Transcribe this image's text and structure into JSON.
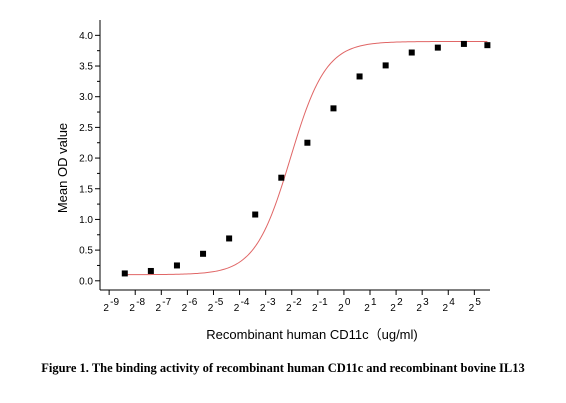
{
  "chart_data": {
    "type": "scatter",
    "xlabel": "Recombinant human  CD11c（ug/ml)",
    "ylabel": "Mean OD value",
    "xscale": "log2",
    "xlim": [
      -9.35,
      5.6
    ],
    "ylim": [
      -0.15,
      4.25
    ],
    "yticks": [
      0.0,
      0.5,
      1.0,
      1.5,
      2.0,
      2.5,
      3.0,
      3.5,
      4.0
    ],
    "ytick_labels": [
      "0.0",
      "0.5",
      "1.0",
      "1.5",
      "2.0",
      "2.5",
      "3.0",
      "3.5",
      "4.0"
    ],
    "xticks": [
      -9,
      -8,
      -7,
      -6,
      -5,
      -4,
      -3,
      -2,
      -1,
      0,
      1,
      2,
      3,
      4,
      5
    ],
    "xtick_labels": [
      {
        "base": "2",
        "exp": "-9"
      },
      {
        "base": "2",
        "exp": "-8"
      },
      {
        "base": "2",
        "exp": "-7"
      },
      {
        "base": "2",
        "exp": "-6"
      },
      {
        "base": "2",
        "exp": "-5"
      },
      {
        "base": "2",
        "exp": "-4"
      },
      {
        "base": "2",
        "exp": "-3"
      },
      {
        "base": "2",
        "exp": "-2"
      },
      {
        "base": "2",
        "exp": "-1"
      },
      {
        "base": "2",
        "exp": "0"
      },
      {
        "base": "2",
        "exp": "1"
      },
      {
        "base": "2",
        "exp": "2"
      },
      {
        "base": "2",
        "exp": "3"
      },
      {
        "base": "2",
        "exp": "4"
      },
      {
        "base": "2",
        "exp": "5"
      }
    ],
    "series": [
      {
        "x": [
          -8.4,
          -7.4,
          -6.4,
          -5.4,
          -4.4,
          -3.4,
          -2.4,
          -1.4,
          -0.4,
          0.6,
          1.6,
          2.6,
          3.6,
          4.6,
          5.5
        ],
        "y": [
          0.12,
          0.16,
          0.25,
          0.44,
          0.69,
          1.08,
          1.68,
          2.25,
          2.81,
          3.33,
          3.51,
          3.72,
          3.8,
          3.86,
          3.84
        ],
        "marker_color": "#000000",
        "marker": "square",
        "fit_color": "#e06666",
        "fit": {
          "bottom": 0.1,
          "top": 3.9,
          "ec50_log2": -2.05,
          "slope_log2": 0.68
        }
      }
    ]
  },
  "caption": {
    "text": "Figure 1. The binding activity of recombinant human CD11c and recombinant bovine IL13"
  }
}
